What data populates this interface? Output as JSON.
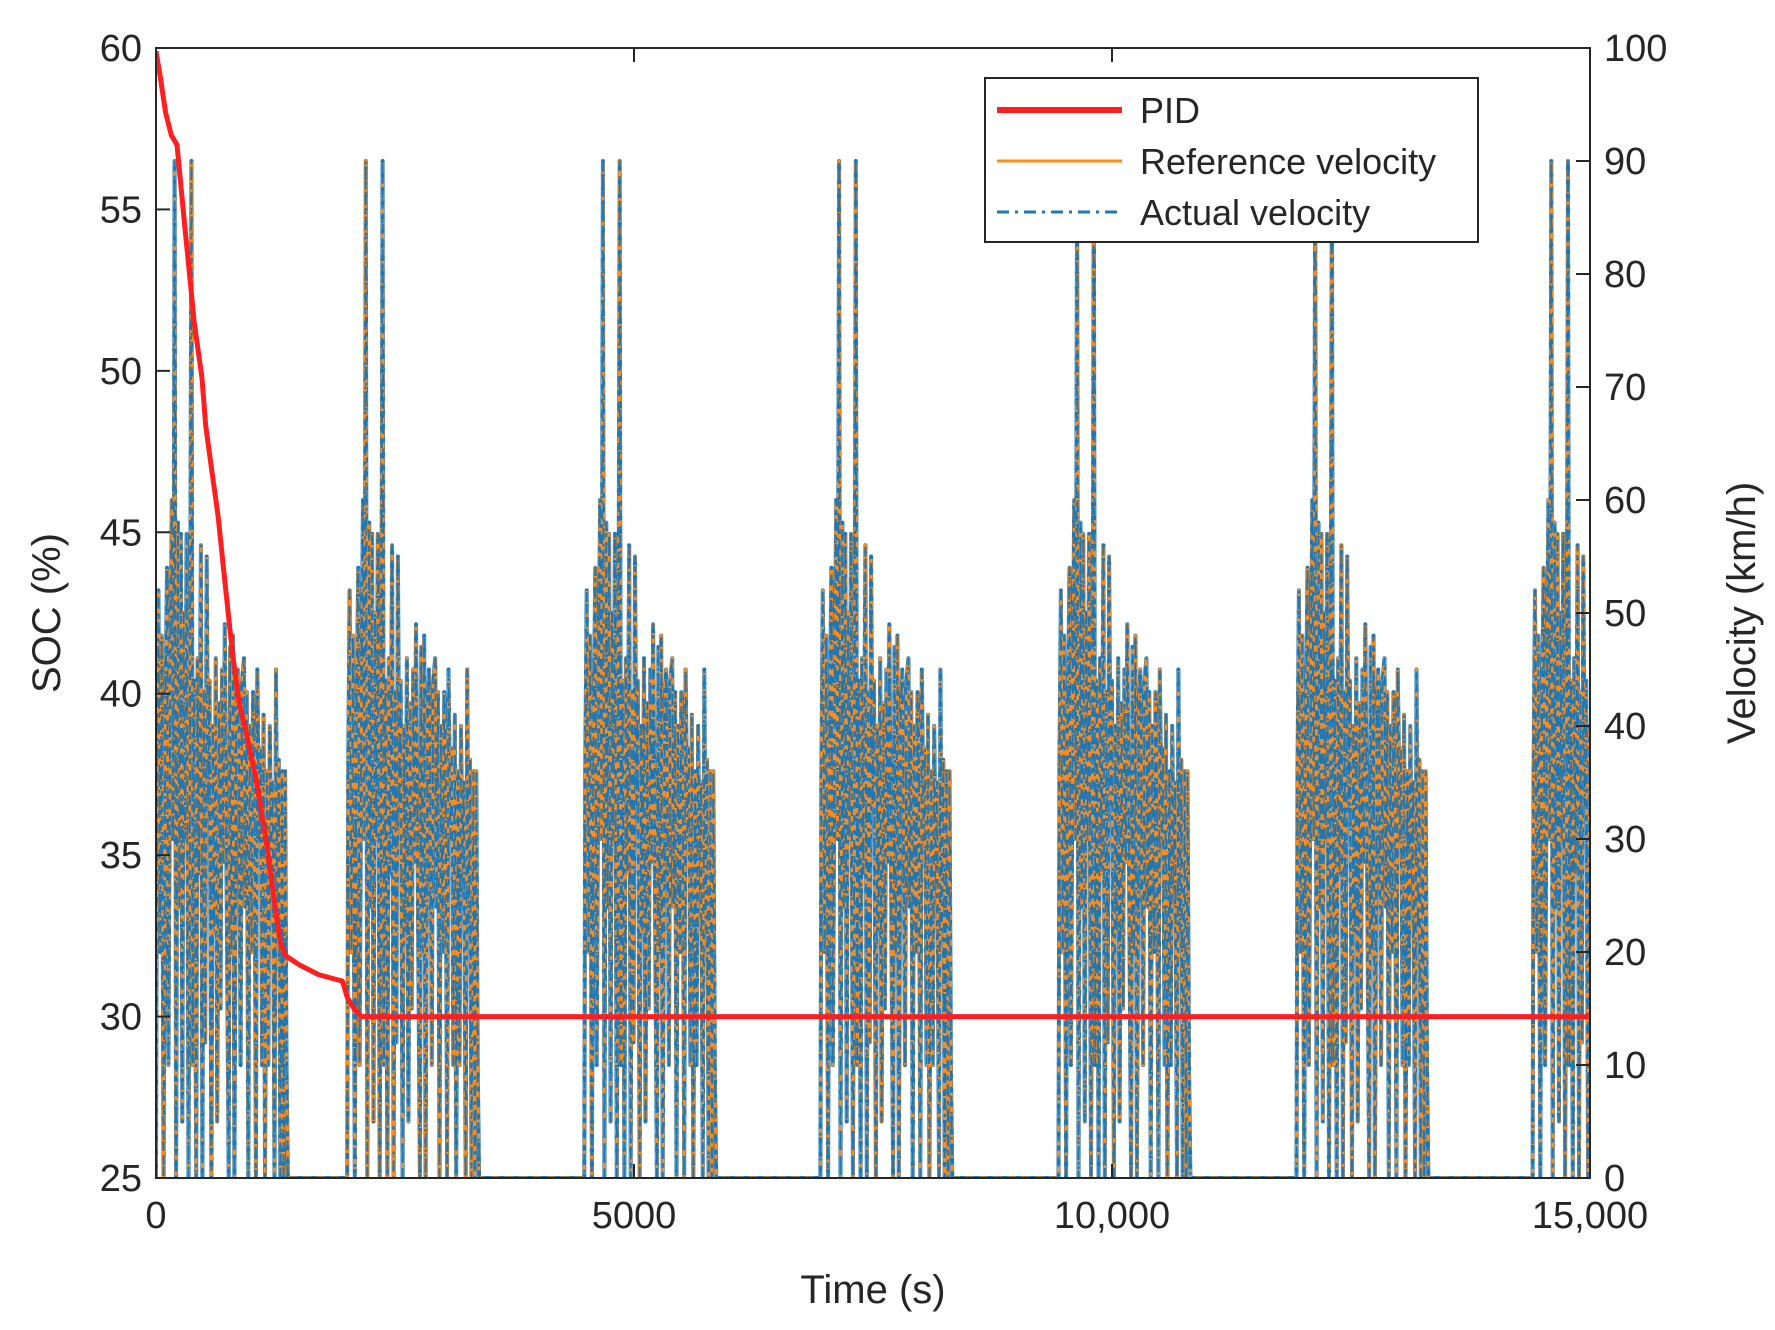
{
  "chart_data": {
    "type": "line",
    "title": "",
    "xlabel": "Time (s)",
    "ylabel_left": "SOC (%)",
    "ylabel_right": "Velocity (km/h)",
    "xlim": [
      0,
      15000
    ],
    "ylim_left": [
      25,
      60
    ],
    "ylim_right": [
      0,
      100
    ],
    "x_ticks": [
      0,
      5000,
      10000,
      15000
    ],
    "x_tick_labels": [
      "0",
      "5000",
      "10,000",
      "15,000"
    ],
    "y_left_ticks": [
      25,
      30,
      35,
      40,
      45,
      50,
      55,
      60
    ],
    "y_left_tick_labels": [
      "25",
      "30",
      "35",
      "40",
      "45",
      "50",
      "55",
      "60"
    ],
    "y_right_ticks": [
      0,
      10,
      20,
      30,
      40,
      50,
      60,
      70,
      80,
      90,
      100
    ],
    "y_right_tick_labels": [
      "0",
      "10",
      "20",
      "30",
      "40",
      "50",
      "60",
      "70",
      "80",
      "90",
      "100"
    ],
    "grid": false,
    "legend_position": "top-right",
    "legend": [
      {
        "label": "PID",
        "color": "#ff1f1f",
        "style": "solid"
      },
      {
        "label": "Reference velocity",
        "color": "#ff8c1a",
        "style": "solid"
      },
      {
        "label": "Actual velocity",
        "color": "#1f77b4",
        "style": "dashdot"
      }
    ],
    "series": [
      {
        "name": "PID",
        "axis": "left",
        "color": "#ff1f1f",
        "x": [
          0,
          40,
          100,
          160,
          220,
          300,
          350,
          400,
          480,
          520,
          580,
          650,
          720,
          780,
          820,
          870,
          950,
          1050,
          1150,
          1250,
          1300,
          1350,
          1400,
          1500,
          1700,
          1950,
          2000,
          2080,
          2150,
          2300,
          2500,
          3000,
          4000,
          4500,
          5000,
          6000,
          7000,
          8000,
          9000,
          10000,
          11000,
          12000,
          13000,
          14000,
          14500,
          15000
        ],
        "y": [
          59.9,
          59.2,
          58.0,
          57.3,
          57.0,
          54.5,
          53.0,
          51.5,
          49.8,
          48.3,
          47.0,
          45.5,
          43.5,
          41.8,
          40.8,
          39.7,
          38.7,
          37.3,
          35.5,
          33.3,
          32.3,
          31.9,
          31.8,
          31.6,
          31.3,
          31.1,
          30.6,
          30.2,
          30.0,
          30.0,
          30.0,
          30.0,
          30.0,
          30.0,
          30.0,
          30.0,
          30.0,
          30.0,
          30.0,
          30.0,
          30.0,
          30.0,
          30.0,
          30.0,
          30.0,
          30.0
        ]
      },
      {
        "name": "Reference velocity",
        "axis": "right",
        "color": "#ff8c1a",
        "cycle_starts": [
          0,
          2000,
          4480,
          6950,
          9440,
          11930,
          14400
        ],
        "cycle_duration": 1380,
        "cycle_profile": {
          "t": [
            0,
            10,
            25,
            45,
            60,
            80,
            95,
            115,
            130,
            150,
            165,
            180,
            195,
            210,
            230,
            245,
            260,
            275,
            290,
            305,
            320,
            340,
            355,
            370,
            385,
            400,
            420,
            435,
            450,
            470,
            485,
            500,
            515,
            530,
            545,
            560,
            580,
            595,
            610,
            625,
            640,
            660,
            675,
            690,
            705,
            720,
            740,
            760,
            775,
            790,
            805,
            820,
            840,
            855,
            870,
            885,
            900,
            920,
            935,
            950,
            965,
            980,
            1000,
            1015,
            1030,
            1045,
            1060,
            1080,
            1095,
            1110,
            1125,
            1140,
            1160,
            1175,
            1190,
            1205,
            1220,
            1240,
            1255,
            1270,
            1285,
            1300,
            1320,
            1335,
            1350,
            1365,
            1380
          ],
          "v": [
            0,
            36,
            52,
            20,
            48,
            0,
            38,
            54,
            10,
            43,
            60,
            30,
            90,
            0,
            58,
            24,
            57,
            5,
            50,
            30,
            57,
            0,
            35,
            90,
            10,
            44,
            0,
            46,
            27,
            56,
            0,
            43,
            12,
            55,
            33,
            44,
            0,
            40,
            22,
            46,
            5,
            42,
            15,
            45,
            28,
            49,
            25,
            0,
            47,
            20,
            48,
            0,
            40,
            45,
            35,
            10,
            44,
            46,
            24,
            43,
            0,
            40,
            20,
            43,
            36,
            0,
            45,
            30,
            38,
            10,
            41,
            0,
            36,
            10,
            40,
            28,
            35,
            0,
            45,
            22,
            37,
            0,
            36,
            0,
            36,
            10,
            0
          ]
        }
      },
      {
        "name": "Actual velocity",
        "axis": "right",
        "color": "#1f77b4",
        "note": "tracks reference velocity"
      }
    ]
  }
}
